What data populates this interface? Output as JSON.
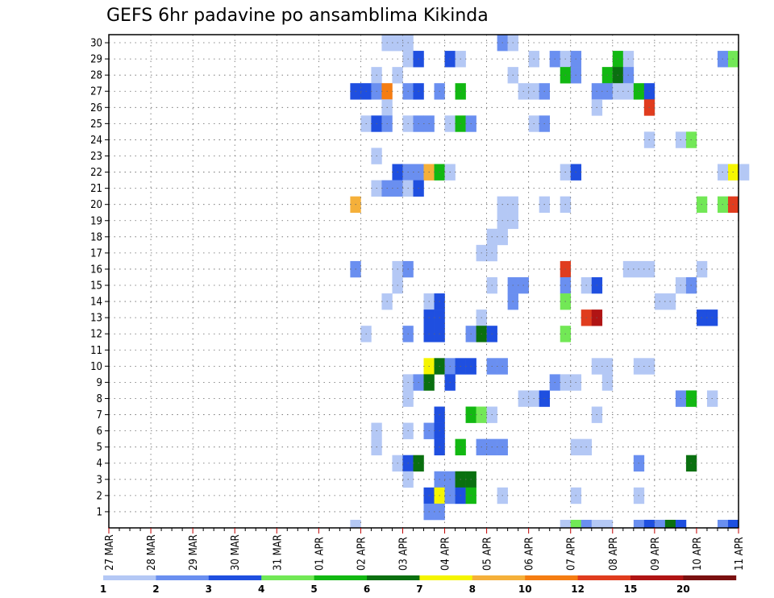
{
  "chart_data": {
    "type": "heatmap",
    "title": "GEFS 6hr padavine po ansamblima Kikinda",
    "x_tick_labels": [
      "27 MAR",
      "28 MAR",
      "29 MAR",
      "30 MAR",
      "31 MAR",
      "01 APR",
      "02 APR",
      "03 APR",
      "04 APR",
      "05 APR",
      "06 APR",
      "07 APR",
      "08 APR",
      "09 APR",
      "10 APR",
      "11 APR"
    ],
    "y_tick_labels": [
      "1",
      "2",
      "3",
      "4",
      "5",
      "6",
      "7",
      "8",
      "9",
      "10",
      "11",
      "12",
      "13",
      "14",
      "15",
      "16",
      "17",
      "18",
      "19",
      "20",
      "21",
      "22",
      "23",
      "24",
      "25",
      "26",
      "27",
      "28",
      "29",
      "30"
    ],
    "x_steps_per_day": 4,
    "y_range": [
      0,
      30
    ],
    "grid": true,
    "legend": {
      "position": "bottom",
      "labels": [
        "1",
        "2",
        "3",
        "4",
        "5",
        "6",
        "7",
        "8",
        "10",
        "12",
        "15",
        "20"
      ],
      "colors": [
        "#b4c8f5",
        "#6a8ff0",
        "#1f4fe0",
        "#72e856",
        "#12b812",
        "#0a7010",
        "#f5f500",
        "#f5b03a",
        "#f57d12",
        "#e03c1e",
        "#b01414",
        "#7a1010"
      ]
    },
    "cells": [
      [
        30,
        26,
        1
      ],
      [
        30,
        27,
        1
      ],
      [
        30,
        28,
        1
      ],
      [
        30,
        37,
        2
      ],
      [
        30,
        38,
        1
      ],
      [
        29,
        28,
        1
      ],
      [
        29,
        29,
        3
      ],
      [
        29,
        32,
        3
      ],
      [
        29,
        33,
        1
      ],
      [
        29,
        40,
        1
      ],
      [
        29,
        42,
        2
      ],
      [
        29,
        43,
        1
      ],
      [
        29,
        44,
        2
      ],
      [
        29,
        48,
        5
      ],
      [
        29,
        49,
        1
      ],
      [
        29,
        58,
        2
      ],
      [
        29,
        59,
        4
      ],
      [
        28,
        25,
        1
      ],
      [
        28,
        27,
        1
      ],
      [
        28,
        38,
        1
      ],
      [
        28,
        43,
        5
      ],
      [
        28,
        44,
        2
      ],
      [
        28,
        47,
        5
      ],
      [
        28,
        48,
        6
      ],
      [
        28,
        49,
        2
      ],
      [
        27,
        23,
        3
      ],
      [
        27,
        24,
        3
      ],
      [
        27,
        25,
        2
      ],
      [
        27,
        26,
        9
      ],
      [
        27,
        28,
        2
      ],
      [
        27,
        29,
        3
      ],
      [
        27,
        31,
        2
      ],
      [
        27,
        33,
        5
      ],
      [
        27,
        39,
        1
      ],
      [
        27,
        40,
        1
      ],
      [
        27,
        41,
        2
      ],
      [
        27,
        46,
        2
      ],
      [
        27,
        47,
        2
      ],
      [
        27,
        48,
        1
      ],
      [
        27,
        49,
        1
      ],
      [
        27,
        50,
        5
      ],
      [
        27,
        51,
        3
      ],
      [
        26,
        26,
        1
      ],
      [
        26,
        46,
        1
      ],
      [
        26,
        51,
        10
      ],
      [
        25,
        24,
        1
      ],
      [
        25,
        25,
        3
      ],
      [
        25,
        26,
        2
      ],
      [
        25,
        28,
        1
      ],
      [
        25,
        29,
        2
      ],
      [
        25,
        30,
        2
      ],
      [
        25,
        32,
        1
      ],
      [
        25,
        33,
        5
      ],
      [
        25,
        34,
        2
      ],
      [
        25,
        40,
        1
      ],
      [
        25,
        41,
        2
      ],
      [
        24,
        51,
        1
      ],
      [
        24,
        54,
        1
      ],
      [
        24,
        55,
        4
      ],
      [
        23,
        25,
        1
      ],
      [
        22,
        27,
        3
      ],
      [
        22,
        28,
        2
      ],
      [
        22,
        29,
        2
      ],
      [
        22,
        30,
        8
      ],
      [
        22,
        31,
        5
      ],
      [
        22,
        32,
        1
      ],
      [
        22,
        43,
        1
      ],
      [
        22,
        44,
        3
      ],
      [
        22,
        58,
        1
      ],
      [
        22,
        59,
        7
      ],
      [
        22,
        60,
        1
      ],
      [
        21,
        25,
        1
      ],
      [
        21,
        26,
        2
      ],
      [
        21,
        27,
        2
      ],
      [
        21,
        28,
        1
      ],
      [
        21,
        29,
        3
      ],
      [
        20,
        23,
        8
      ],
      [
        20,
        37,
        1
      ],
      [
        20,
        38,
        1
      ],
      [
        20,
        41,
        1
      ],
      [
        20,
        43,
        1
      ],
      [
        20,
        56,
        4
      ],
      [
        20,
        58,
        4
      ],
      [
        20,
        59,
        10
      ],
      [
        19,
        37,
        1
      ],
      [
        19,
        38,
        1
      ],
      [
        18,
        36,
        1
      ],
      [
        18,
        37,
        1
      ],
      [
        17,
        35,
        1
      ],
      [
        17,
        36,
        1
      ],
      [
        16,
        23,
        2
      ],
      [
        16,
        27,
        1
      ],
      [
        16,
        28,
        2
      ],
      [
        16,
        43,
        10
      ],
      [
        16,
        49,
        1
      ],
      [
        16,
        50,
        1
      ],
      [
        16,
        51,
        1
      ],
      [
        16,
        56,
        1
      ],
      [
        15,
        27,
        1
      ],
      [
        15,
        36,
        1
      ],
      [
        15,
        38,
        2
      ],
      [
        15,
        39,
        2
      ],
      [
        15,
        43,
        2
      ],
      [
        15,
        45,
        1
      ],
      [
        15,
        46,
        3
      ],
      [
        15,
        54,
        1
      ],
      [
        15,
        55,
        2
      ],
      [
        14,
        26,
        1
      ],
      [
        14,
        30,
        1
      ],
      [
        14,
        31,
        3
      ],
      [
        14,
        38,
        2
      ],
      [
        14,
        43,
        4
      ],
      [
        14,
        52,
        1
      ],
      [
        14,
        53,
        1
      ],
      [
        13,
        30,
        3
      ],
      [
        13,
        31,
        3
      ],
      [
        13,
        35,
        1
      ],
      [
        13,
        45,
        10
      ],
      [
        13,
        46,
        11
      ],
      [
        13,
        56,
        3
      ],
      [
        13,
        57,
        3
      ],
      [
        12,
        24,
        1
      ],
      [
        12,
        28,
        2
      ],
      [
        12,
        30,
        3
      ],
      [
        12,
        31,
        3
      ],
      [
        12,
        34,
        2
      ],
      [
        12,
        35,
        6
      ],
      [
        12,
        36,
        3
      ],
      [
        12,
        43,
        4
      ],
      [
        10,
        30,
        7
      ],
      [
        10,
        31,
        6
      ],
      [
        10,
        32,
        2
      ],
      [
        10,
        33,
        3
      ],
      [
        10,
        34,
        3
      ],
      [
        10,
        36,
        2
      ],
      [
        10,
        37,
        2
      ],
      [
        10,
        46,
        1
      ],
      [
        10,
        47,
        1
      ],
      [
        10,
        50,
        1
      ],
      [
        10,
        51,
        1
      ],
      [
        9,
        28,
        1
      ],
      [
        9,
        29,
        2
      ],
      [
        9,
        30,
        6
      ],
      [
        9,
        32,
        3
      ],
      [
        9,
        42,
        2
      ],
      [
        9,
        43,
        1
      ],
      [
        9,
        44,
        1
      ],
      [
        9,
        47,
        1
      ],
      [
        8,
        28,
        1
      ],
      [
        8,
        39,
        1
      ],
      [
        8,
        40,
        1
      ],
      [
        8,
        41,
        3
      ],
      [
        8,
        54,
        2
      ],
      [
        8,
        55,
        5
      ],
      [
        8,
        57,
        1
      ],
      [
        7,
        31,
        3
      ],
      [
        7,
        34,
        5
      ],
      [
        7,
        35,
        4
      ],
      [
        7,
        36,
        1
      ],
      [
        7,
        46,
        1
      ],
      [
        6,
        25,
        1
      ],
      [
        6,
        28,
        1
      ],
      [
        6,
        30,
        2
      ],
      [
        6,
        31,
        3
      ],
      [
        5,
        25,
        1
      ],
      [
        5,
        31,
        3
      ],
      [
        5,
        33,
        5
      ],
      [
        5,
        35,
        2
      ],
      [
        5,
        36,
        2
      ],
      [
        5,
        37,
        2
      ],
      [
        5,
        44,
        1
      ],
      [
        5,
        45,
        1
      ],
      [
        4,
        27,
        1
      ],
      [
        4,
        28,
        3
      ],
      [
        4,
        29,
        6
      ],
      [
        4,
        50,
        2
      ],
      [
        4,
        55,
        6
      ],
      [
        3,
        28,
        1
      ],
      [
        3,
        31,
        2
      ],
      [
        3,
        32,
        2
      ],
      [
        3,
        33,
        6
      ],
      [
        3,
        34,
        6
      ],
      [
        2,
        30,
        3
      ],
      [
        2,
        31,
        7
      ],
      [
        2,
        32,
        2
      ],
      [
        2,
        33,
        3
      ],
      [
        2,
        34,
        5
      ],
      [
        2,
        37,
        1
      ],
      [
        2,
        44,
        1
      ],
      [
        2,
        50,
        1
      ],
      [
        1,
        30,
        2
      ],
      [
        1,
        31,
        2
      ],
      [
        0,
        23,
        1
      ],
      [
        0,
        43,
        1
      ],
      [
        0,
        44,
        4
      ],
      [
        0,
        45,
        2
      ],
      [
        0,
        46,
        1
      ],
      [
        0,
        47,
        1
      ],
      [
        0,
        50,
        2
      ],
      [
        0,
        51,
        3
      ],
      [
        0,
        52,
        2
      ],
      [
        0,
        53,
        6
      ],
      [
        0,
        54,
        3
      ],
      [
        0,
        58,
        2
      ],
      [
        0,
        59,
        3
      ]
    ]
  }
}
